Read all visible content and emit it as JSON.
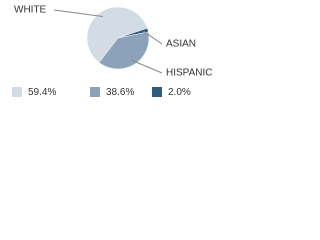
{
  "chart_data": {
    "type": "pie",
    "categories": [
      "WHITE",
      "ASIAN",
      "HISPANIC"
    ],
    "values": [
      59.4,
      2.0,
      38.6
    ],
    "value_labels": [
      "59.4%",
      "2.0%",
      "38.6%"
    ],
    "colors": [
      "#d3dbe5",
      "#2e5b80",
      "#8ca2ba"
    ]
  }
}
